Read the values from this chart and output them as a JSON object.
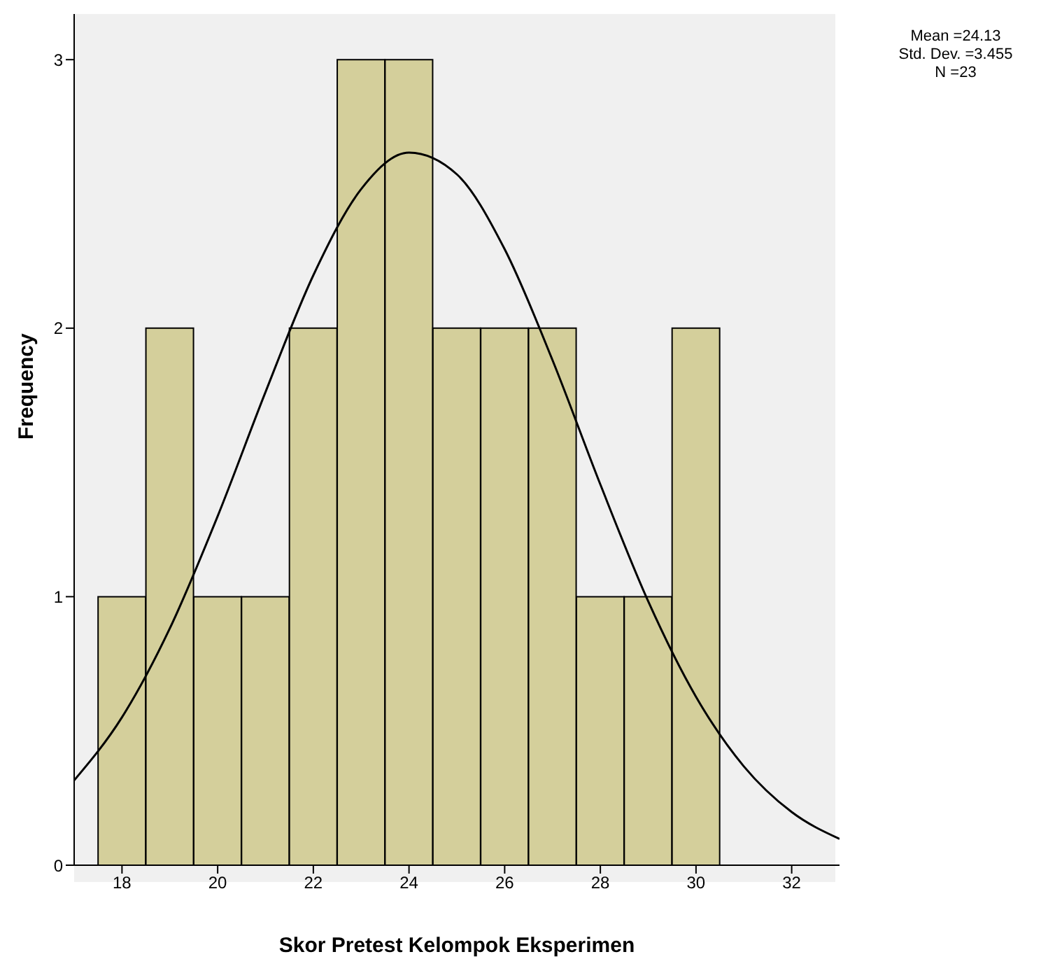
{
  "chart_data": {
    "type": "histogram",
    "xlabel": "Skor Pretest Kelompok Eksperimen",
    "ylabel": "Frequency",
    "series": [
      {
        "color": "#d4cf9b",
        "bins": [
          17.5,
          18.5,
          19.5,
          20.5,
          21.5,
          22.5,
          23.5,
          24.5,
          25.5,
          26.5,
          27.5,
          28.5,
          29.5,
          30.5
        ],
        "values": [
          1,
          2,
          1,
          1,
          2,
          3,
          3,
          2,
          2,
          2,
          1,
          1,
          2
        ]
      },
      {
        "type": "line",
        "color": "#000000",
        "x": [
          17,
          18,
          19,
          20,
          21,
          22,
          23,
          24,
          25,
          26,
          27,
          28,
          29,
          30,
          31,
          32,
          33
        ],
        "values": [
          0.316,
          0.551,
          0.882,
          1.3,
          1.762,
          2.197,
          2.518,
          2.654,
          2.573,
          2.294,
          1.881,
          1.418,
          0.983,
          0.627,
          0.368,
          0.198,
          0.098
        ]
      }
    ],
    "xlim": [
      17,
      33
    ],
    "xticks": [
      18,
      20,
      22,
      24,
      26,
      28,
      30,
      32
    ],
    "ylim": [
      0,
      3.17
    ],
    "yticks": [
      0,
      1,
      2,
      3
    ],
    "marker": "none",
    "line_style": "solid",
    "annotations": [
      "Mean =24.13",
      "Std. Dev. =3.455",
      "N =23"
    ]
  }
}
